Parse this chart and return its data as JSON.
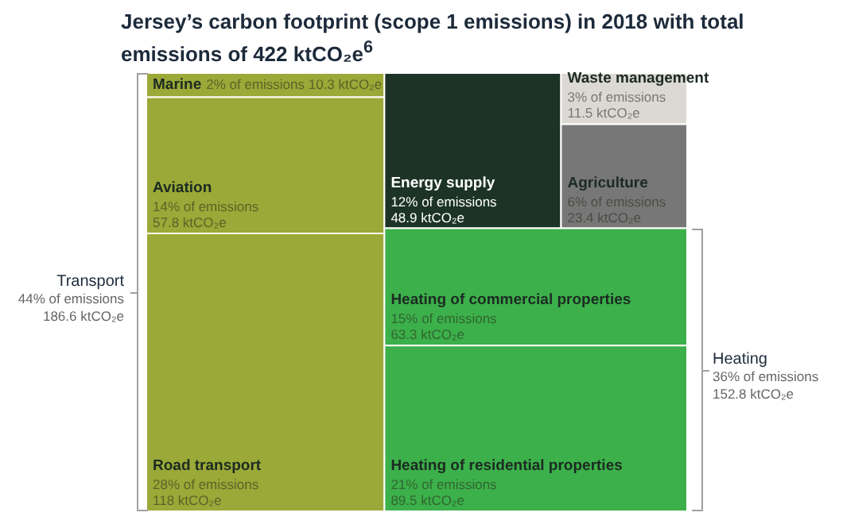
{
  "chart_data": {
    "type": "other",
    "title": "Jersey’s carbon footprint (scope 1 emissions) in 2018 with total emissions of 422 ktCO₂e$^{6}$",
    "categories": [
      "Marine",
      "Aviation",
      "Road transport",
      "Energy supply",
      "Waste management",
      "Agriculture",
      "Heating of commercial properties",
      "Heating of residential properties"
    ],
    "values": [
      10.3,
      57.8,
      118,
      48.9,
      11.5,
      23.4,
      63.3,
      89.5
    ],
    "value_labels": [
      "2% of emissions\n10.3 ktCO₂e",
      "14% of emissions\n57.8 ktCO₂e",
      "28% of emissions\n118 ktCO₂e",
      "12% of emissions\n48.9 ktCO₂e",
      "3% of emissions\n11.5 ktCO₂e",
      "6% of emissions\n23.4 ktCO₂e",
      "15% of emissions\n63.3 ktCO₂e",
      "21% of emissions\n89.5 ktCO₂e"
    ],
    "colors": [
      "#9aa937",
      "#9aa937",
      "#9aa937",
      "#1c3326",
      "#dcd8d4",
      "#777777",
      "#3cb04a",
      "#3cb04a"
    ],
    "annotations": [
      "Transport\n44% of emissions\n186.6 ktCO₂e",
      "Heating\n36% of emissions\n152.8 ktCO₂e"
    ]
  }
}
